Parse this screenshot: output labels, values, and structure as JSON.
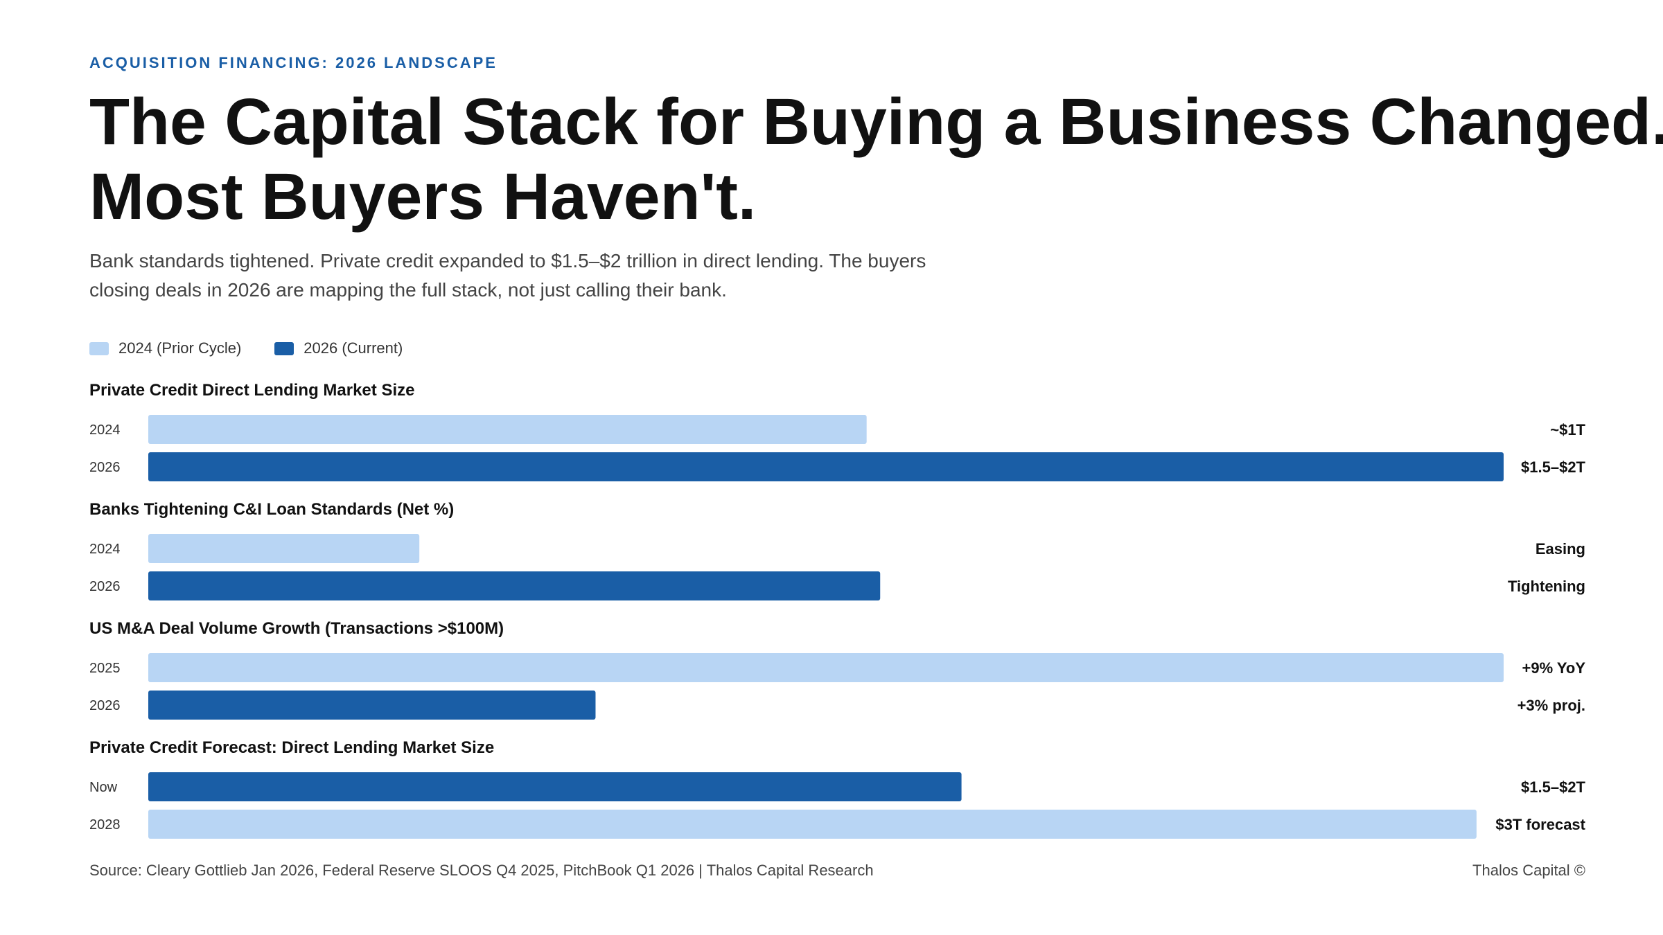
{
  "eyebrow": "ACQUISITION FINANCING: 2026 LANDSCAPE",
  "title_line1": "The Capital Stack for Buying a Business Changed.",
  "title_line2": "Most Buyers Haven't.",
  "subtitle_line1": "Bank standards tightened. Private credit expanded to $1.5–$2 trillion in direct lending. The buyers",
  "subtitle_line2": "closing deals in 2026 are mapping the full stack, not just calling their bank.",
  "legend": [
    {
      "label": "2024 (Prior Cycle)",
      "color": "#b8d5f4"
    },
    {
      "label": "2026 (Current)",
      "color": "#1a5ea6"
    }
  ],
  "colors": {
    "prior": "#b8d5f4",
    "current": "#1a5ea6",
    "accent": "#1a5ea6",
    "text": "#111111",
    "muted": "#444444"
  },
  "chart_data": {
    "type": "bar",
    "orientation": "horizontal",
    "value_scale": "relative share of longest bar (0–1)",
    "groups": [
      {
        "title": "Private Credit Direct Lending Market Size",
        "bars": [
          {
            "category": "2024",
            "series": "2024 (Prior Cycle)",
            "value": 0.53,
            "label": "~$1T"
          },
          {
            "category": "2026",
            "series": "2026 (Current)",
            "value": 1.0,
            "label": "$1.5–$2T"
          }
        ]
      },
      {
        "title": "Banks Tightening C&I Loan Standards (Net %)",
        "bars": [
          {
            "category": "2024",
            "series": "2024 (Prior Cycle)",
            "value": 0.2,
            "label": "Easing"
          },
          {
            "category": "2026",
            "series": "2026 (Current)",
            "value": 0.54,
            "label": "Tightening"
          }
        ]
      },
      {
        "title": "US M&A Deal Volume Growth (Transactions >$100M)",
        "bars": [
          {
            "category": "2025",
            "series": "2024 (Prior Cycle)",
            "value": 1.0,
            "label": "+9% YoY"
          },
          {
            "category": "2026",
            "series": "2026 (Current)",
            "value": 0.33,
            "label": "+3% proj."
          }
        ]
      },
      {
        "title": "Private Credit Forecast: Direct Lending Market Size",
        "bars": [
          {
            "category": "Now",
            "series": "2026 (Current)",
            "value": 0.6,
            "label": "$1.5–$2T"
          },
          {
            "category": "2028",
            "series": "2024 (Prior Cycle)",
            "value": 0.98,
            "label": "$3T forecast"
          }
        ]
      }
    ]
  },
  "footer": {
    "source": "Source: Cleary Gottlieb Jan 2026, Federal Reserve SLOOS Q4 2025, PitchBook Q1 2026 | Thalos Capital Research",
    "brand": "Thalos Capital ©"
  }
}
